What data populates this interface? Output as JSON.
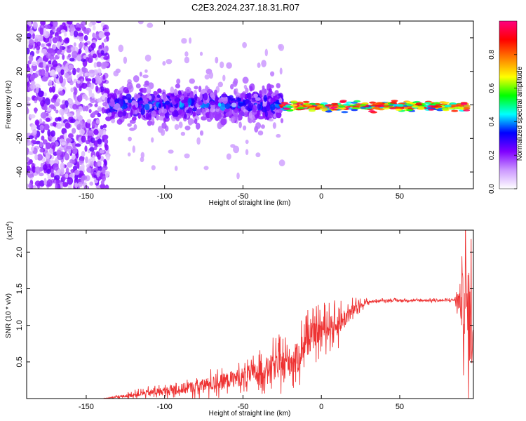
{
  "page": {
    "title": "C2E3.2024.237.18.31.R07"
  },
  "chart_data": [
    {
      "type": "heatmap",
      "title": "C2E3.2024.237.18.31.R07",
      "xlabel": "Height of straight line (km)",
      "ylabel": "Frequency (Hz)",
      "xlim": [
        -188,
        97
      ],
      "ylim": [
        -50,
        50
      ],
      "xticks": [
        -150,
        -100,
        -50,
        0,
        50
      ],
      "yticks": [
        -40,
        -20,
        0,
        20,
        40
      ],
      "ridge_frequency_hz": -1,
      "colorbar": {
        "label": "Normalized spectral amplitude",
        "range": [
          0,
          1
        ],
        "ticks": [
          0.0,
          0.2,
          0.4,
          0.6,
          0.8
        ],
        "tick_labels": [
          "0.0",
          "0.2",
          "0.4",
          "0.6",
          "0.8"
        ],
        "colors": [
          "#ffffff",
          "#cc99ff",
          "#8000ff",
          "#0000ff",
          "#00ffff",
          "#00ff00",
          "#ffff00",
          "#ff8000",
          "#ff0000",
          "#ff0080"
        ]
      },
      "regions": [
        {
          "x_range": [
            -188,
            -136
          ],
          "freq_spread_hz": 50,
          "amplitude": "low"
        },
        {
          "x_range": [
            -136,
            -25
          ],
          "freq_spread_hz": 12,
          "amplitude": "medium"
        },
        {
          "x_range": [
            -25,
            93
          ],
          "freq_spread_hz": 3,
          "amplitude": "high"
        }
      ]
    },
    {
      "type": "line",
      "xlabel": "Height of straight line (km)",
      "ylabel": "SNR (10 * v/v)",
      "multiplier_label": "(x10",
      "multiplier_exp": "4",
      "xlim": [
        -188,
        97
      ],
      "ylim": [
        0,
        2.3
      ],
      "xticks": [
        -150,
        -100,
        -50,
        0,
        50
      ],
      "yticks": [
        0.5,
        1.0,
        1.5,
        2.0
      ],
      "ytick_labels": [
        "0.5",
        "1.0",
        "1.5",
        "2.0"
      ],
      "color": "#ee3333",
      "series": [
        {
          "x": [
            -188,
            -150,
            -140,
            -135,
            -130,
            -120,
            -110,
            -100,
            -90,
            -80,
            -70,
            -60,
            -50,
            -40,
            -30,
            -20,
            -15,
            -10,
            -5,
            0,
            5,
            10,
            15,
            20,
            25,
            30,
            35,
            40,
            50,
            60,
            70,
            80,
            85,
            88,
            90,
            92,
            94,
            96
          ],
          "values": [
            0.0,
            0.0,
            0.0,
            0.01,
            0.02,
            0.05,
            0.08,
            0.1,
            0.13,
            0.16,
            0.2,
            0.25,
            0.3,
            0.36,
            0.45,
            0.5,
            0.55,
            0.8,
            0.85,
            0.95,
            0.98,
            1.0,
            1.1,
            1.2,
            1.28,
            1.32,
            1.33,
            1.34,
            1.34,
            1.34,
            1.34,
            1.34,
            1.35,
            1.35,
            1.3,
            1.4,
            1.0,
            1.1
          ],
          "noise": [
            0,
            0,
            0,
            0.01,
            0.02,
            0.04,
            0.06,
            0.08,
            0.1,
            0.12,
            0.14,
            0.15,
            0.18,
            0.2,
            0.25,
            0.28,
            0.3,
            0.3,
            0.25,
            0.25,
            0.22,
            0.22,
            0.2,
            0.12,
            0.06,
            0.03,
            0.02,
            0.02,
            0.02,
            0.02,
            0.02,
            0.02,
            0.03,
            0.25,
            0.6,
            0.8,
            0.9,
            0.8
          ]
        }
      ]
    }
  ]
}
